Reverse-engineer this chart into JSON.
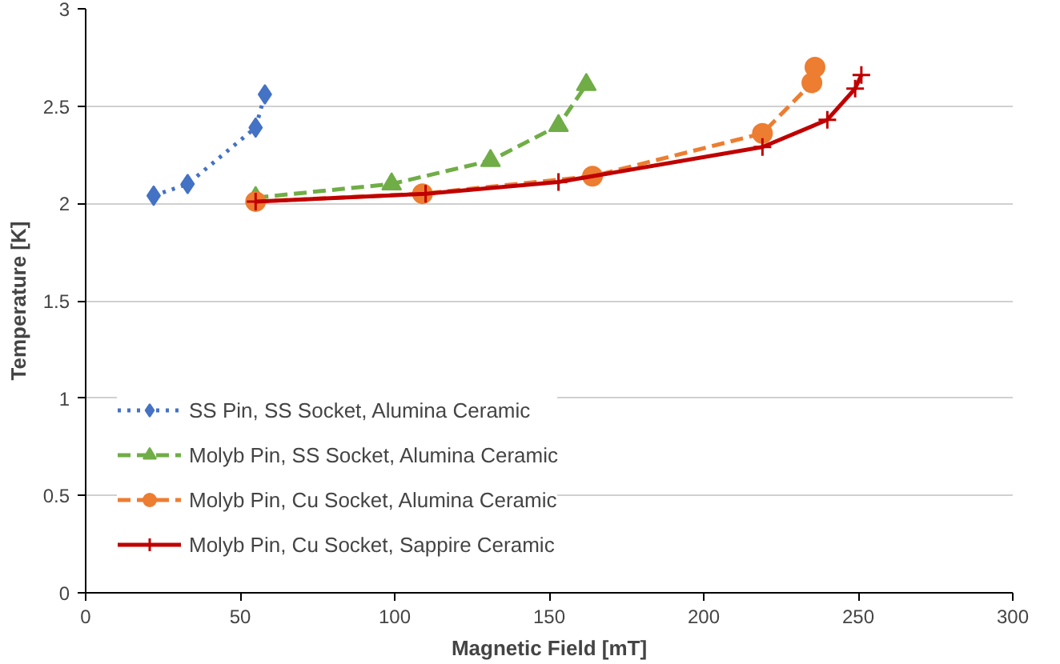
{
  "chart_data": {
    "type": "line",
    "xlabel": "Magnetic Field [mT]",
    "ylabel": "Temperature [K]",
    "xlim": [
      0,
      300
    ],
    "xticks": [
      0,
      50,
      100,
      150,
      200,
      250,
      300
    ],
    "ylim": [
      0,
      3
    ],
    "yticks": [
      0,
      0.5,
      1,
      1.5,
      2,
      2.5,
      3
    ],
    "grid": "y",
    "legend": "bottom left",
    "series": [
      {
        "name": "SS Pin, SS Socket, Alumina Ceramic",
        "color": "#4472c4",
        "marker": "diamond",
        "line_style": "dotted",
        "x": [
          22,
          33,
          55,
          58
        ],
        "values": [
          2.04,
          2.1,
          2.39,
          2.56
        ]
      },
      {
        "name": "Molyb Pin, SS Socket, Alumina Ceramic",
        "color": "#70ad47",
        "marker": "triangle",
        "line_style": "dashed",
        "x": [
          55,
          99,
          131,
          153,
          162
        ],
        "values": [
          2.03,
          2.1,
          2.22,
          2.4,
          2.61
        ]
      },
      {
        "name": "Molyb Pin, Cu Socket, Alumina Ceramic",
        "color": "#ed7d31",
        "marker": "circle",
        "line_style": "dashed",
        "x": [
          55,
          109,
          164,
          219,
          235,
          236
        ],
        "values": [
          2.01,
          2.05,
          2.14,
          2.36,
          2.62,
          2.7
        ]
      },
      {
        "name": "Molyb Pin, Cu Socket, Sappire Ceramic",
        "color": "#c00000",
        "marker": "cross",
        "line_style": "solid",
        "x": [
          55,
          110,
          153,
          219,
          240,
          249,
          251
        ],
        "values": [
          2.01,
          2.05,
          2.11,
          2.29,
          2.43,
          2.59,
          2.66
        ]
      }
    ]
  }
}
